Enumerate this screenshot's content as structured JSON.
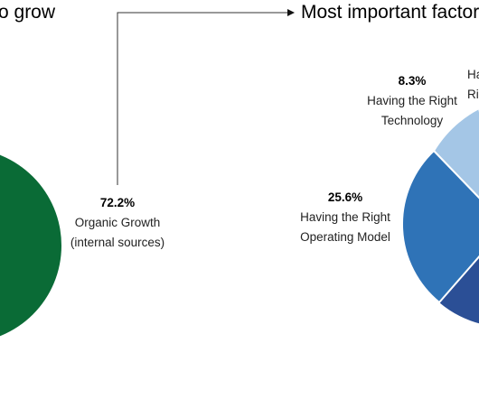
{
  "titles": {
    "left": "o grow",
    "right": "Most important factor"
  },
  "chart_data": [
    {
      "type": "pie",
      "slices": [
        {
          "label": "Organic Growth (internal sources)",
          "label_line1": "Organic Growth",
          "label_line2": "(internal sources)",
          "value": 72.2,
          "value_label": "72.2%",
          "color": "#0a6b36"
        }
      ]
    },
    {
      "type": "pie",
      "slices": [
        {
          "label": "Having the Right Technology",
          "label_line1": "Having the Right",
          "label_line2": "Technology",
          "value": 8.3,
          "value_label": "8.3%",
          "color": "#a4c6e6"
        },
        {
          "label": "Having the Right Operating Model",
          "label_line1": "Having the Right",
          "label_line2": "Operating Model",
          "value": 25.6,
          "value_label": "25.6%",
          "color": "#2f73b7"
        },
        {
          "label_line1": "Ha",
          "label_line2": "Ri"
        }
      ]
    }
  ]
}
